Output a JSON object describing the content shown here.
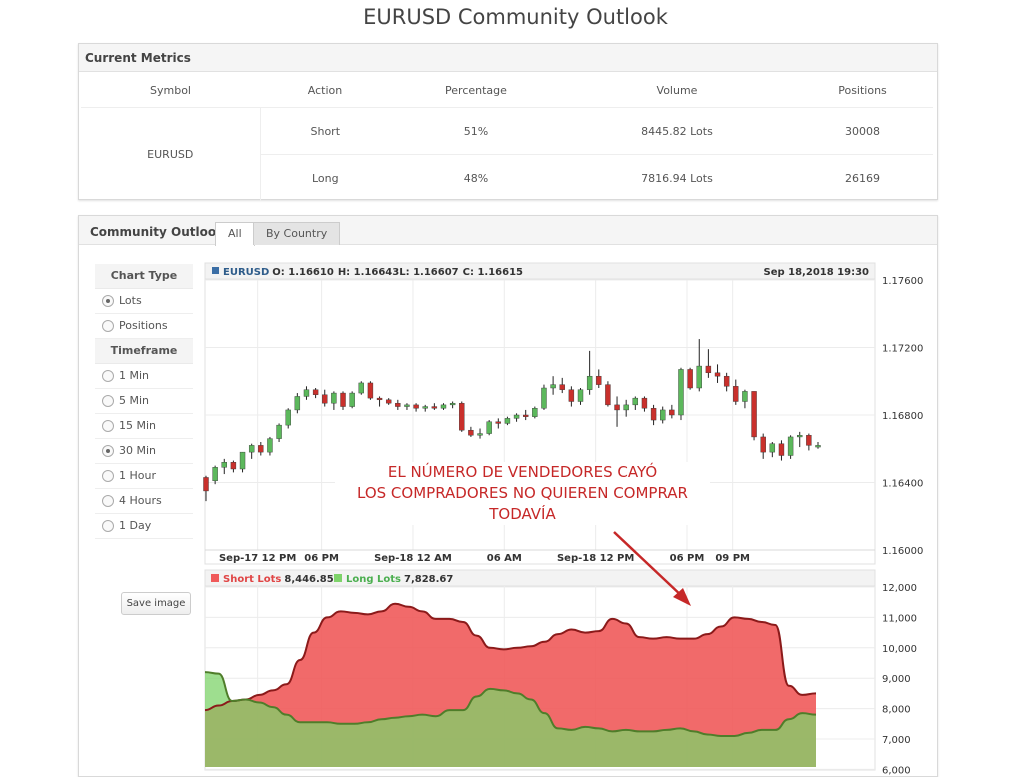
{
  "page_title": "EURUSD Community Outlook",
  "metrics": {
    "title": "Current Metrics",
    "headers": [
      "Symbol",
      "Action",
      "Percentage",
      "Volume",
      "Positions"
    ],
    "symbol": "EURUSD",
    "rows": [
      {
        "action": "Short",
        "percentage": "51%",
        "volume": "8445.82 Lots",
        "positions": "30008"
      },
      {
        "action": "Long",
        "percentage": "48%",
        "volume": "7816.94 Lots",
        "positions": "26169"
      }
    ]
  },
  "outlook": {
    "title": "Community Outlook",
    "tabs": [
      "All",
      "By Country"
    ],
    "chart_type_label": "Chart Type",
    "chart_types": [
      "Lots",
      "Positions"
    ],
    "chart_type_selected": "Lots",
    "timeframe_label": "Timeframe",
    "timeframes": [
      "1 Min",
      "5 Min",
      "15 Min",
      "30 Min",
      "1 Hour",
      "4 Hours",
      "1 Day"
    ],
    "timeframe_selected": "30 Min",
    "save_label": "Save image"
  },
  "annotation": {
    "lines": [
      "EL NÚMERO DE VENDEDORES CAYÓ",
      "LOS COMPRADORES NO QUIEREN COMPRAR",
      "TODAVÍA"
    ],
    "color": "#c62828"
  },
  "chart_data": [
    {
      "type": "candlestick",
      "symbol": "EURUSD",
      "ohlc_label": {
        "o": "O: 1.16610",
        "h": "H: 1.16643",
        "l": "L: 1.16607",
        "c": "C: 1.16615"
      },
      "timestamp": "Sep 18,2018 19:30",
      "ylim": [
        1.16,
        1.176
      ],
      "yticks": [
        "1.17600",
        "1.17200",
        "1.16800",
        "1.16400",
        "1.16000"
      ],
      "xticks": [
        "Sep-17 12 PM",
        "06 PM",
        "Sep-18 12 AM",
        "06 AM",
        "Sep-18 12 PM",
        "06 PM",
        "09 PM"
      ],
      "colors": {
        "up": "#5cb85c",
        "down": "#c9302c"
      },
      "candles": [
        [
          1.1643,
          1.1644,
          1.1629,
          1.1635
        ],
        [
          1.1641,
          1.165,
          1.1639,
          1.1649
        ],
        [
          1.1649,
          1.1654,
          1.1645,
          1.1652
        ],
        [
          1.1652,
          1.1653,
          1.1646,
          1.1648
        ],
        [
          1.1648,
          1.1658,
          1.1646,
          1.1658
        ],
        [
          1.1658,
          1.1663,
          1.1654,
          1.1662
        ],
        [
          1.1662,
          1.1664,
          1.1656,
          1.1658
        ],
        [
          1.1658,
          1.1667,
          1.1656,
          1.1666
        ],
        [
          1.1666,
          1.1675,
          1.1664,
          1.1674
        ],
        [
          1.1674,
          1.1684,
          1.1672,
          1.1683
        ],
        [
          1.1683,
          1.1693,
          1.1681,
          1.1691
        ],
        [
          1.1691,
          1.1697,
          1.1689,
          1.1695
        ],
        [
          1.1695,
          1.1696,
          1.169,
          1.1692
        ],
        [
          1.1692,
          1.1695,
          1.1685,
          1.1687
        ],
        [
          1.1687,
          1.1694,
          1.1683,
          1.1693
        ],
        [
          1.1693,
          1.1694,
          1.1683,
          1.1685
        ],
        [
          1.1685,
          1.1694,
          1.1684,
          1.1693
        ],
        [
          1.1693,
          1.17,
          1.1692,
          1.1699
        ],
        [
          1.1699,
          1.17,
          1.1689,
          1.169
        ],
        [
          1.169,
          1.1691,
          1.1685,
          1.1689
        ],
        [
          1.1689,
          1.169,
          1.1686,
          1.1687
        ],
        [
          1.1687,
          1.1689,
          1.1683,
          1.1685
        ],
        [
          1.1685,
          1.1687,
          1.1683,
          1.1686
        ],
        [
          1.1686,
          1.1687,
          1.1682,
          1.1684
        ],
        [
          1.1684,
          1.1686,
          1.1682,
          1.1685
        ],
        [
          1.1685,
          1.1687,
          1.1683,
          1.1684
        ],
        [
          1.1684,
          1.1687,
          1.1683,
          1.1686
        ],
        [
          1.1686,
          1.1688,
          1.1684,
          1.1687
        ],
        [
          1.1687,
          1.1688,
          1.167,
          1.1671
        ],
        [
          1.1671,
          1.1673,
          1.1667,
          1.1668
        ],
        [
          1.1668,
          1.1672,
          1.1666,
          1.1669
        ],
        [
          1.1669,
          1.1677,
          1.1668,
          1.1676
        ],
        [
          1.1676,
          1.1678,
          1.1672,
          1.1675
        ],
        [
          1.1675,
          1.1679,
          1.1674,
          1.1678
        ],
        [
          1.1678,
          1.1681,
          1.1676,
          1.168
        ],
        [
          1.168,
          1.1683,
          1.1677,
          1.1679
        ],
        [
          1.1679,
          1.1685,
          1.1678,
          1.1684
        ],
        [
          1.1684,
          1.1698,
          1.1683,
          1.1696
        ],
        [
          1.1696,
          1.1703,
          1.1692,
          1.1698
        ],
        [
          1.1698,
          1.1702,
          1.1693,
          1.1695
        ],
        [
          1.1695,
          1.1697,
          1.1685,
          1.1688
        ],
        [
          1.1688,
          1.1696,
          1.1686,
          1.1695
        ],
        [
          1.1695,
          1.1718,
          1.1692,
          1.1703
        ],
        [
          1.1703,
          1.1707,
          1.1696,
          1.1698
        ],
        [
          1.1698,
          1.17,
          1.1685,
          1.1686
        ],
        [
          1.1686,
          1.1691,
          1.1673,
          1.1683
        ],
        [
          1.1683,
          1.1689,
          1.1679,
          1.1686
        ],
        [
          1.1686,
          1.1691,
          1.1683,
          1.169
        ],
        [
          1.169,
          1.1691,
          1.1682,
          1.1684
        ],
        [
          1.1684,
          1.1686,
          1.1674,
          1.1677
        ],
        [
          1.1677,
          1.1685,
          1.1675,
          1.1683
        ],
        [
          1.1683,
          1.1686,
          1.1678,
          1.168
        ],
        [
          1.168,
          1.1708,
          1.1677,
          1.1707
        ],
        [
          1.1707,
          1.1708,
          1.1695,
          1.1696
        ],
        [
          1.1696,
          1.1725,
          1.1694,
          1.1709
        ],
        [
          1.1709,
          1.1719,
          1.1702,
          1.1705
        ],
        [
          1.1705,
          1.171,
          1.1699,
          1.1703
        ],
        [
          1.1703,
          1.1705,
          1.1694,
          1.1697
        ],
        [
          1.1697,
          1.1701,
          1.1686,
          1.1688
        ],
        [
          1.1688,
          1.1695,
          1.1684,
          1.1694
        ],
        [
          1.1694,
          1.1694,
          1.1665,
          1.1667
        ],
        [
          1.1667,
          1.1669,
          1.1654,
          1.1658
        ],
        [
          1.1658,
          1.1664,
          1.1655,
          1.1663
        ],
        [
          1.1663,
          1.1665,
          1.1653,
          1.1656
        ],
        [
          1.1656,
          1.1668,
          1.1654,
          1.1667
        ],
        [
          1.1667,
          1.167,
          1.1661,
          1.1668
        ],
        [
          1.1668,
          1.1669,
          1.1659,
          1.1662
        ],
        [
          1.1661,
          1.1664,
          1.166,
          1.1662
        ]
      ]
    },
    {
      "type": "area",
      "series": [
        {
          "name": "Short Lots",
          "label": "Short Lots",
          "value_text": "8,446.85",
          "color": "#f05a5a",
          "values": [
            7950,
            8100,
            8250,
            8300,
            8450,
            8600,
            8800,
            9600,
            10500,
            11000,
            11200,
            11150,
            11100,
            11200,
            11450,
            11350,
            11200,
            10950,
            10950,
            10850,
            10400,
            10000,
            9950,
            10000,
            10050,
            10200,
            10450,
            10600,
            10500,
            10550,
            10950,
            10800,
            10350,
            10300,
            10350,
            10300,
            10300,
            10450,
            10700,
            11000,
            10950,
            10850,
            10750,
            8750,
            8450,
            8500
          ]
        },
        {
          "name": "Long Lots",
          "label": "Long Lots",
          "value_text": "7,828.67",
          "color": "#7ed36a",
          "values": [
            9200,
            9150,
            8250,
            8300,
            8200,
            8050,
            7800,
            7550,
            7550,
            7550,
            7500,
            7500,
            7550,
            7650,
            7700,
            7750,
            7800,
            7750,
            7950,
            7950,
            8400,
            8650,
            8600,
            8500,
            8300,
            7850,
            7350,
            7300,
            7400,
            7350,
            7250,
            7300,
            7250,
            7250,
            7300,
            7350,
            7250,
            7150,
            7100,
            7100,
            7200,
            7300,
            7300,
            7650,
            7850,
            7800
          ]
        }
      ],
      "ylim": [
        6000,
        12500
      ],
      "yticks": [
        "12,000",
        "11,000",
        "10,000",
        "9,000",
        "8,000",
        "7,000",
        "6,000"
      ]
    }
  ]
}
